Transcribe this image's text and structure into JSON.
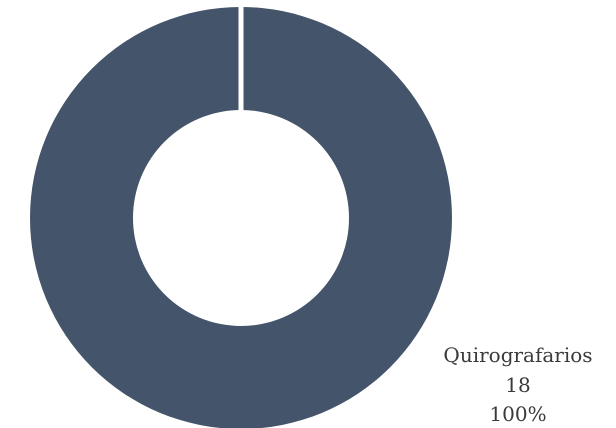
{
  "chart_data": {
    "type": "pie",
    "variant": "donut",
    "slices": [
      {
        "name": "Quirografarios",
        "value": 18,
        "percent_label": "100%",
        "color": "#44546a"
      }
    ],
    "legend": false,
    "data_labels": true
  }
}
